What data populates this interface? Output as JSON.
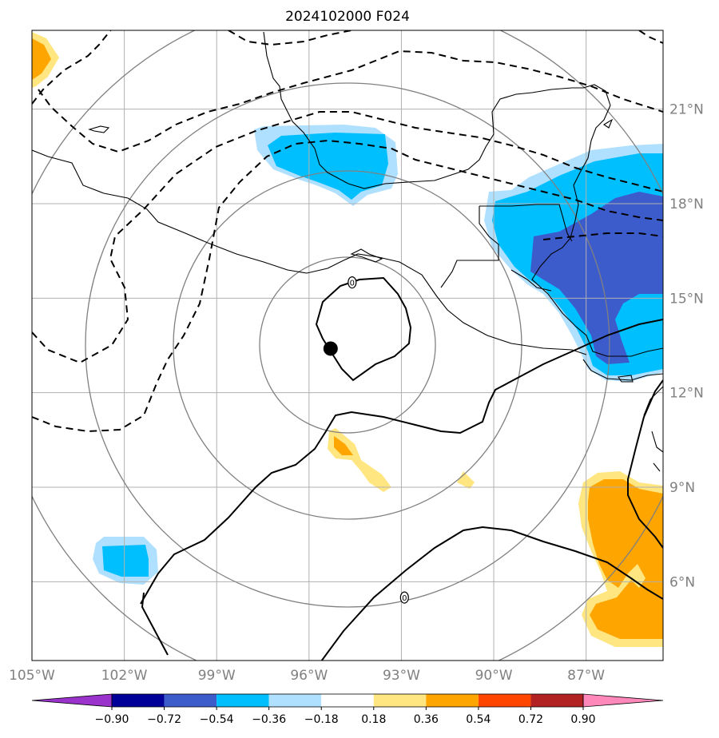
{
  "title": "2024102000 F024",
  "map": {
    "lon_range": [
      -105,
      -84.5
    ],
    "lat_range": [
      3.5,
      23.5
    ],
    "lat_labels": [
      "21°N",
      "18°N",
      "15°N",
      "12°N",
      "9°N",
      "6°N"
    ],
    "lat_values": [
      21,
      18,
      15,
      12,
      9,
      6
    ],
    "lon_labels": [
      "105°W",
      "102°W",
      "99°W",
      "96°W",
      "93°W",
      "90°W",
      "87°W"
    ],
    "lon_values": [
      -105,
      -102,
      -99,
      -96,
      -93,
      -90,
      -87
    ],
    "center_marker": {
      "lon": -95.3,
      "lat": 13.4
    },
    "contour_labels": [
      {
        "text": "0",
        "lon": -94.6,
        "lat": 15.5
      },
      {
        "text": "0",
        "lon": -92.9,
        "lat": 5.5
      }
    ],
    "colors": {
      "grid": "#b0b0b0",
      "range_rings": "#808080",
      "coastline": "#000000"
    }
  },
  "colorbar": {
    "tick_labels": [
      "−0.90",
      "−0.72",
      "−0.54",
      "−0.36",
      "−0.18",
      "0.18",
      "0.36",
      "0.54",
      "0.72",
      "0.90"
    ],
    "bin_colors": [
      "#9933cc",
      "#000099",
      "#3d5ccc",
      "#00bfff",
      "#b0e0ff",
      "#ffffff",
      "#ffe680",
      "#ffa500",
      "#ff4500",
      "#b22222",
      "#ff88bb"
    ]
  }
}
